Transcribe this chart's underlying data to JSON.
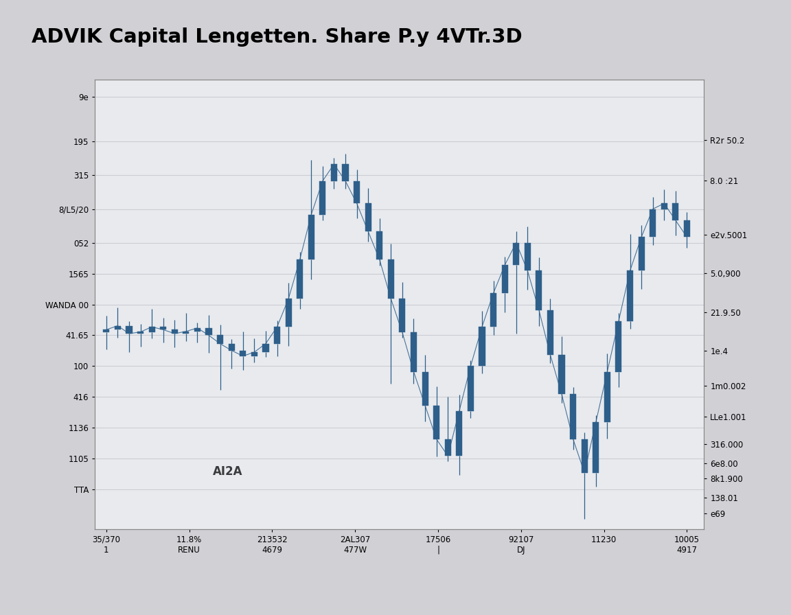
{
  "title": "ADVIK Capital Lengetten. Share P.y 4VTr.3D",
  "background_color": "#d0d0d5",
  "plot_bg_color": "#e8eaee",
  "bar_color": "#2e5f8a",
  "line_color": "#2e5f8a",
  "dates": [
    "35/370\n1",
    "11.8%\nRENU",
    "213532\n4679",
    "2AL307\n477W",
    "17506\n|",
    "92107\nDJ",
    "11230\n",
    "10005\n4917"
  ],
  "y_left_labels": [
    "9e",
    "195",
    "315",
    "8/L5/20",
    "052",
    "1565",
    "WANDA 00",
    "41.65",
    "100",
    "416",
    "1136",
    "1105",
    "TTA"
  ],
  "y_left_values": [
    870,
    790,
    730,
    670,
    610,
    555,
    500,
    445,
    390,
    335,
    280,
    225,
    170
  ],
  "y_right_labels": [
    "R2r 50.2",
    "8.0 :21",
    "e2v.5001",
    "5.0,900",
    "21.9.50",
    "1e.4",
    "1m0.002",
    "LLe1.001",
    "316.000",
    "6e8.00",
    "8k1.900",
    "138.01",
    "e69"
  ],
  "y_right_values": [
    50.2,
    45.0,
    38.0,
    33.0,
    28.0,
    23.0,
    18.5,
    14.5,
    11.0,
    8.5,
    6.5,
    4.0,
    2.0
  ],
  "annotation_text": "AI2A",
  "ylim_left": [
    100,
    900
  ],
  "ylim_right": [
    0,
    58
  ],
  "grid_color": "#c8cad0",
  "spine_color": "#888888"
}
